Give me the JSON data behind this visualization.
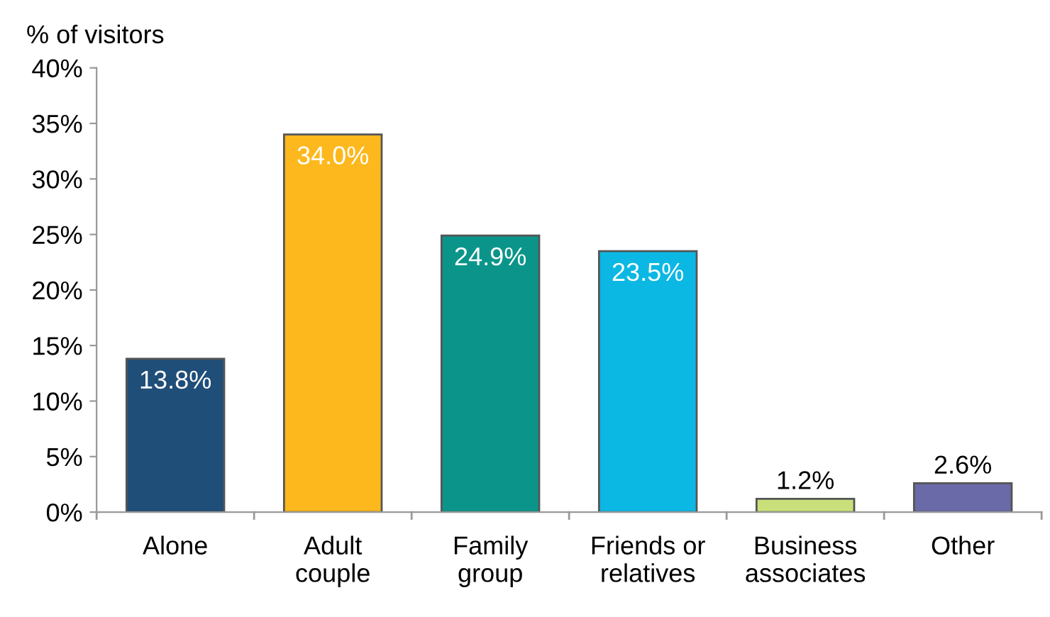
{
  "chart_data": {
    "type": "bar",
    "ylabel": "% of visitors",
    "categories": [
      "Alone",
      "Adult\ncouple",
      "Family\ngroup",
      "Friends or\nrelatives",
      "Business\nassociates",
      "Other"
    ],
    "values": [
      13.8,
      34.0,
      24.9,
      23.5,
      1.2,
      2.6
    ],
    "colors": [
      "#1f4e79",
      "#fdb81d",
      "#0b958a",
      "#0bb8e3",
      "#c9e07a",
      "#6a6aa8"
    ],
    "value_labels": [
      "13.8%",
      "34.0%",
      "24.9%",
      "23.5%",
      "1.2%",
      "2.6%"
    ],
    "ylim": [
      0,
      40
    ],
    "yticks": [
      {
        "value": 0,
        "label": "0%"
      },
      {
        "value": 5,
        "label": "5%"
      },
      {
        "value": 10,
        "label": "10%"
      },
      {
        "value": 15,
        "label": "15%"
      },
      {
        "value": 20,
        "label": "20%"
      },
      {
        "value": 25,
        "label": "25%"
      },
      {
        "value": 30,
        "label": "30%"
      },
      {
        "value": 35,
        "label": "35%"
      },
      {
        "value": 40,
        "label": "40%"
      }
    ],
    "grid": false
  }
}
